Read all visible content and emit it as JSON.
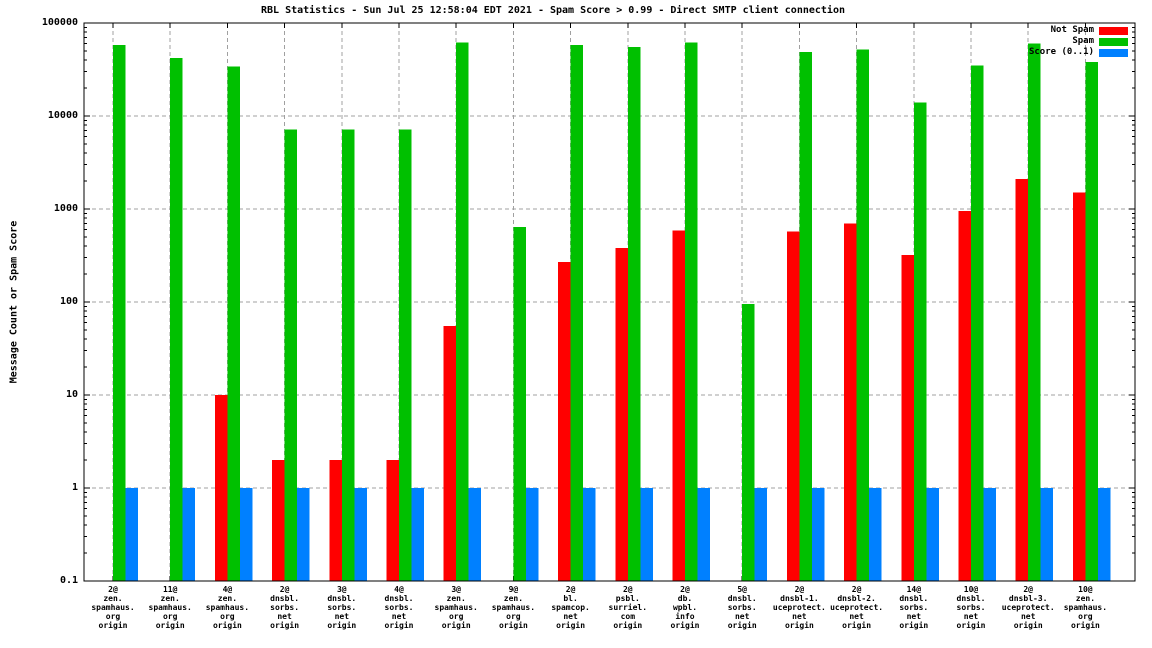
{
  "chart_data": {
    "type": "bar",
    "title": "RBL Statistics - Sun Jul 25 12:58:04 EDT 2021 - Spam Score > 0.99 - Direct SMTP client connection",
    "ylabel": "Message Count or Spam Score",
    "xlabel": "",
    "yscale": "log",
    "ylim": [
      0.1,
      100000
    ],
    "ytick_labels": [
      "100000",
      "10000",
      "1000",
      "100",
      "10",
      "1",
      "0.1"
    ],
    "grid": true,
    "legend_position": "top-right-inside",
    "colors": {
      "not_spam": "#ff0000",
      "spam": "#00c000",
      "score": "#0080ff",
      "grid": "#a0a0a0",
      "axis": "#000000",
      "background": "#ffffff"
    },
    "legend": [
      {
        "label": "Not Spam",
        "series": "not_spam"
      },
      {
        "label": "Spam",
        "series": "spam"
      },
      {
        "label": "Score (0..1)",
        "series": "score"
      }
    ],
    "categories": [
      [
        "2@",
        "zen.",
        "spamhaus.",
        "org",
        "origin"
      ],
      [
        "11@",
        "zen.",
        "spamhaus.",
        "org",
        "origin"
      ],
      [
        "4@",
        "zen.",
        "spamhaus.",
        "org",
        "origin"
      ],
      [
        "2@",
        "dnsbl.",
        "sorbs.",
        "net",
        "origin"
      ],
      [
        "3@",
        "dnsbl.",
        "sorbs.",
        "net",
        "origin"
      ],
      [
        "4@",
        "dnsbl.",
        "sorbs.",
        "net",
        "origin"
      ],
      [
        "3@",
        "zen.",
        "spamhaus.",
        "org",
        "origin"
      ],
      [
        "9@",
        "zen.",
        "spamhaus.",
        "org",
        "origin"
      ],
      [
        "2@",
        "bl.",
        "spamcop.",
        "net",
        "origin"
      ],
      [
        "2@",
        "psbl.",
        "surriel.",
        "com",
        "origin"
      ],
      [
        "2@",
        "db.",
        "wpbl.",
        "info",
        "origin"
      ],
      [
        "5@",
        "dnsbl.",
        "sorbs.",
        "net",
        "origin"
      ],
      [
        "2@",
        "dnsbl-1.",
        "uceprotect.",
        "net",
        "origin"
      ],
      [
        "2@",
        "dnsbl-2.",
        "uceprotect.",
        "net",
        "origin"
      ],
      [
        "14@",
        "dnsbl.",
        "sorbs.",
        "net",
        "origin"
      ],
      [
        "10@",
        "dnsbl.",
        "sorbs.",
        "net",
        "origin"
      ],
      [
        "2@",
        "dnsbl-3.",
        "uceprotect.",
        "net",
        "origin"
      ],
      [
        "10@",
        "zen.",
        "spamhaus.",
        "org",
        "origin"
      ]
    ],
    "series": [
      {
        "name": "Not Spam",
        "key": "not_spam",
        "values": [
          null,
          null,
          10,
          2,
          2,
          2,
          55,
          null,
          270,
          380,
          590,
          null,
          570,
          700,
          320,
          950,
          2100,
          1500
        ]
      },
      {
        "name": "Spam",
        "key": "spam",
        "values": [
          58000,
          42000,
          34000,
          7200,
          7200,
          7200,
          62000,
          640,
          58000,
          55000,
          62000,
          95,
          49000,
          52000,
          14000,
          35000,
          60000,
          38000
        ]
      },
      {
        "name": "Score (0..1)",
        "key": "score",
        "values": [
          1,
          1,
          1,
          1,
          1,
          1,
          1,
          1,
          1,
          1,
          1,
          1,
          1,
          1,
          1,
          1,
          1,
          1
        ]
      }
    ]
  }
}
